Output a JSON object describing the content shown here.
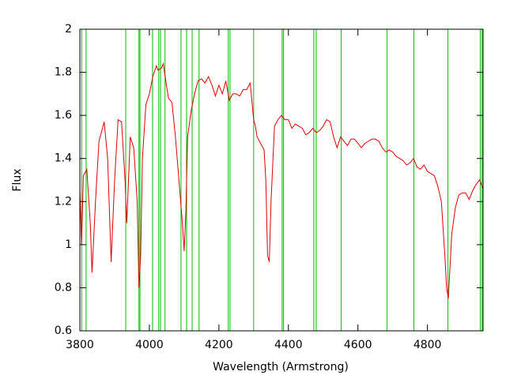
{
  "chart_data": {
    "type": "line",
    "x_label": "Wavelength (Armstrong)",
    "y_label": "Flux",
    "xlim": [
      3800,
      4960
    ],
    "xticks": [
      3800,
      4000,
      4200,
      4400,
      4600,
      4800
    ],
    "ylim": [
      0.6,
      2
    ],
    "yticks": [
      0.6,
      0.8,
      1,
      1.2,
      1.4,
      1.6,
      1.8,
      2
    ],
    "color": "#e00000",
    "x": [
      3800,
      3805,
      3810,
      3820,
      3830,
      3835,
      3845,
      3855,
      3870,
      3880,
      3890,
      3900,
      3910,
      3920,
      3930,
      3935,
      3945,
      3955,
      3965,
      3970,
      3975,
      3980,
      3990,
      4000,
      4010,
      4020,
      4025,
      4035,
      4040,
      4050,
      4055,
      4065,
      4075,
      4085,
      4095,
      4100,
      4105,
      4110,
      4120,
      4130,
      4140,
      4150,
      4160,
      4170,
      4180,
      4190,
      4200,
      4210,
      4220,
      4230,
      4240,
      4250,
      4260,
      4270,
      4280,
      4290,
      4300,
      4305,
      4310,
      4320,
      4330,
      4335,
      4340,
      4345,
      4350,
      4360,
      4370,
      4380,
      4390,
      4400,
      4410,
      4420,
      4430,
      4440,
      4450,
      4460,
      4470,
      4480,
      4490,
      4500,
      4510,
      4520,
      4530,
      4540,
      4550,
      4560,
      4570,
      4580,
      4590,
      4600,
      4610,
      4620,
      4630,
      4640,
      4650,
      4660,
      4670,
      4680,
      4690,
      4700,
      4710,
      4720,
      4730,
      4740,
      4750,
      4760,
      4770,
      4780,
      4790,
      4800,
      4810,
      4820,
      4830,
      4840,
      4850,
      4855,
      4860,
      4865,
      4870,
      4880,
      4890,
      4900,
      4910,
      4920,
      4930,
      4940,
      4950,
      4960
    ],
    "values": [
      1.25,
      1.0,
      1.32,
      1.35,
      1.1,
      0.87,
      1.2,
      1.48,
      1.57,
      1.4,
      0.92,
      1.3,
      1.58,
      1.57,
      1.3,
      1.1,
      1.5,
      1.45,
      1.2,
      0.8,
      0.95,
      1.4,
      1.65,
      1.7,
      1.78,
      1.83,
      1.81,
      1.82,
      1.84,
      1.73,
      1.68,
      1.66,
      1.5,
      1.3,
      1.1,
      0.97,
      1.15,
      1.5,
      1.62,
      1.7,
      1.76,
      1.77,
      1.75,
      1.78,
      1.74,
      1.69,
      1.74,
      1.7,
      1.76,
      1.67,
      1.7,
      1.7,
      1.69,
      1.72,
      1.72,
      1.75,
      1.58,
      1.55,
      1.5,
      1.47,
      1.44,
      1.3,
      0.95,
      0.92,
      1.2,
      1.55,
      1.58,
      1.6,
      1.58,
      1.58,
      1.54,
      1.56,
      1.55,
      1.54,
      1.51,
      1.52,
      1.54,
      1.52,
      1.53,
      1.55,
      1.58,
      1.57,
      1.5,
      1.45,
      1.5,
      1.48,
      1.46,
      1.49,
      1.49,
      1.47,
      1.45,
      1.47,
      1.48,
      1.49,
      1.49,
      1.48,
      1.45,
      1.43,
      1.44,
      1.43,
      1.41,
      1.4,
      1.39,
      1.37,
      1.38,
      1.4,
      1.36,
      1.35,
      1.37,
      1.34,
      1.33,
      1.32,
      1.27,
      1.2,
      0.95,
      0.8,
      0.75,
      0.9,
      1.05,
      1.17,
      1.23,
      1.24,
      1.24,
      1.21,
      1.25,
      1.28,
      1.3,
      1.26
    ],
    "markers": [
      3805,
      3818,
      3932,
      3970,
      3973,
      4009,
      4027,
      4032,
      4045,
      4091,
      4107,
      4123,
      4143,
      4227,
      4232,
      4300,
      4382,
      4386,
      4473,
      4480,
      4552,
      4684,
      4761,
      4859,
      4952,
      4957
    ],
    "marker_color": "#00c000"
  }
}
